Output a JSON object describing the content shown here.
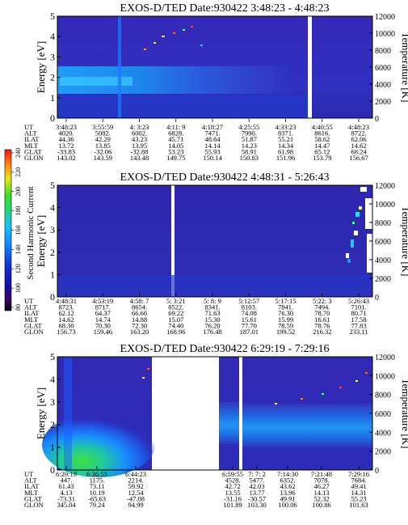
{
  "colorbar": {
    "label": "Second Harmonic Current",
    "ticks": [
      "240",
      "220",
      "200",
      "180",
      "160",
      "140",
      "120",
      "100",
      "80"
    ]
  },
  "row_labels": [
    "UT",
    "ALT",
    "ILAT",
    "MLT",
    "GLAT",
    "GLON"
  ],
  "chart_data": [
    {
      "type": "heatmap",
      "title": "EXOS-D/TED   Date:930422   3:48:23 - 4:48:23",
      "ylabel": "Energy [eV]",
      "ylabel_right": "Temperature [K]",
      "ylim": [
        0,
        5
      ],
      "ylim_right": [
        0,
        12000
      ],
      "yticks": [
        "0",
        "1",
        "2",
        "3",
        "4",
        "5"
      ],
      "yticks_right": [
        "0",
        "2000",
        "4000",
        "6000",
        "8000",
        "10000",
        "12000"
      ],
      "columns": [
        [
          "3:48:23",
          "4020.",
          "44.36",
          "13.72",
          "-33.83",
          "143.02"
        ],
        [
          "3:55:59",
          "5082.",
          "42.29",
          "13.85",
          "-32.06",
          "143.59"
        ],
        [
          "4: 3:23",
          "6002.",
          "43.23",
          "13.95",
          "-32.88",
          "143.48"
        ],
        [
          "4:11: 9",
          "6828.",
          "45.71",
          "14.05",
          "53.23",
          "149.75"
        ],
        [
          "4:18:27",
          "7471.",
          "48.64",
          "14.14",
          "55.93",
          "150.14"
        ],
        [
          "4:25:55",
          "7990.",
          "51.87",
          "14.23",
          "58.91",
          "150.83"
        ],
        [
          "4:33:23",
          "8371.",
          "55.21",
          "14.34",
          "61.98",
          "151.96"
        ],
        [
          "4:40:55",
          "8616.",
          "58.62",
          "14.47",
          "65.12",
          "153.79"
        ],
        [
          "4:48:23",
          "8722.",
          "62.06",
          "14.62",
          "68.24",
          "156.67"
        ]
      ]
    },
    {
      "type": "heatmap",
      "title": "EXOS-D/TED   Date:930422   4:48:31 - 5:26:43",
      "ylabel": "Energy [eV]",
      "ylabel_right": "Temperature [K]",
      "ylim": [
        0,
        5
      ],
      "ylim_right": [
        0,
        12000
      ],
      "yticks": [
        "0",
        "1",
        "2",
        "3",
        "4",
        "5"
      ],
      "yticks_right": [
        "0",
        "2000",
        "4000",
        "6000",
        "8000",
        "10000",
        "12000"
      ],
      "columns": [
        [
          "4:48:31",
          "8723.",
          "62.12",
          "14.62",
          "68.30",
          "156.73"
        ],
        [
          "4:53:19",
          "8717.",
          "64.37",
          "14.74",
          "70.30",
          "159.46"
        ],
        [
          "4:58: 7",
          "8654.",
          "66.66",
          "14.88",
          "72.30",
          "163.20"
        ],
        [
          "5: 3:21",
          "8522.",
          "69.22",
          "15.07",
          "74.40",
          "168.96"
        ],
        [
          "5: 8: 9",
          "8341.",
          "71.63",
          "15.30",
          "76.20",
          "176.48"
        ],
        [
          "5:12:57",
          "8103.",
          "74.08",
          "15.61",
          "77.70",
          "187.01"
        ],
        [
          "5:17:15",
          "7841.",
          "76.30",
          "15.99",
          "78.59",
          "199.52"
        ],
        [
          "5:22: 3",
          "7494.",
          "78.70",
          "16.61",
          "78.76",
          "216.32"
        ],
        [
          "5:26:43",
          "7101.",
          "80.71",
          "17.58",
          "77.83",
          "233.11"
        ]
      ]
    },
    {
      "type": "heatmap",
      "title": "EXOS-D/TED   Date:930422   6:29:19 - 7:29:16",
      "ylabel": "Energy [eV]",
      "ylabel_right": "Temperature [K]",
      "ylim": [
        0,
        5
      ],
      "ylim_right": [
        0,
        12000
      ],
      "yticks": [
        "0",
        "1",
        "2",
        "3",
        "4",
        "5"
      ],
      "yticks_right": [
        "0",
        "2000",
        "4000",
        "6000",
        "8000",
        "10000",
        "12000"
      ],
      "columns": [
        [
          "6:29:19",
          "447.",
          "61.43",
          "4.13",
          "-73.31",
          "345.04"
        ],
        [
          "6:36:55",
          "1175.",
          "73.11",
          "10.19",
          "-65.63",
          "79.24"
        ],
        [
          "6:44:23",
          "2214.",
          "59.92",
          "12.54",
          "-47.08",
          "94.99"
        ],
        [
          "6:59:55",
          "4528.",
          "42.72",
          "13.55",
          "-31.16",
          "101.89"
        ],
        [
          "7: 7: 2",
          "5477.",
          "42.03",
          "13.77",
          "-30.57",
          "103.30"
        ],
        [
          "7:14:30",
          "6352.",
          "43.62",
          "13.96",
          "49.91",
          "100.06"
        ],
        [
          "7:21:48",
          "7078.",
          "46.27",
          "14.13",
          "52.32",
          "100.86"
        ],
        [
          "7:29:16",
          "7684.",
          "49.41",
          "14.31",
          "55.23",
          "101.63"
        ]
      ]
    }
  ]
}
